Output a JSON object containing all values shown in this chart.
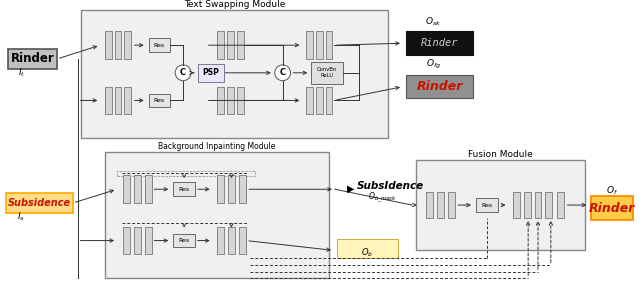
{
  "fig_width": 6.4,
  "fig_height": 2.83,
  "dpi": 100,
  "bg_color": "#ffffff",
  "title_tsm": "Text Swapping Module",
  "title_bim": "Background Inpainting Module",
  "title_fm": "Fusion Module",
  "input_rinder": "Rinder",
  "input_subsidence": "Subsidence",
  "osk_text": "Rinder",
  "ofg_text": "Rinder",
  "of_text": "Rinder",
  "ob_mask_text": "SubsIdence"
}
